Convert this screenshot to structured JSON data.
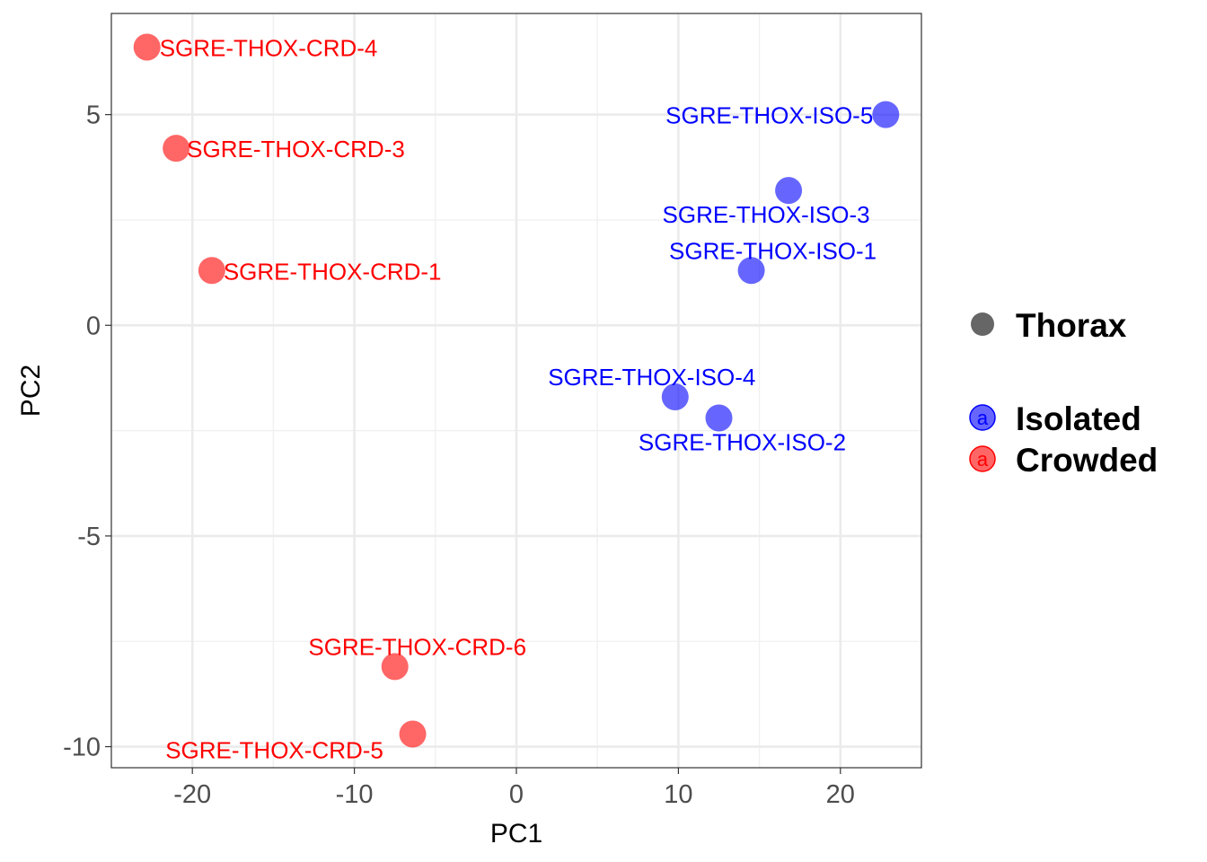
{
  "chart_data": {
    "type": "scatter",
    "title": "",
    "xlabel": "PC1",
    "ylabel": "PC2",
    "xlim": [
      -25,
      25
    ],
    "ylim": [
      -10.5,
      7.4
    ],
    "x_ticks": [
      -20,
      -10,
      0,
      10,
      20
    ],
    "x_tick_labels": [
      "-20",
      "-10",
      "0",
      "10",
      "20"
    ],
    "y_ticks": [
      -10,
      -5,
      0,
      5
    ],
    "y_tick_labels": [
      "-10",
      "-5",
      "0",
      "5"
    ],
    "grid": true,
    "legend_position": "right",
    "legend": {
      "shape_title": "Thorax",
      "shape_color": "#666666",
      "glyph": "a",
      "entries": [
        {
          "name": "Isolated",
          "color": "#0000ff"
        },
        {
          "name": "Crowded",
          "color": "#ff0000"
        }
      ]
    },
    "series": [
      {
        "name": "Isolated",
        "color": "#0000ff",
        "points": [
          {
            "label": "SGRE-THOX-ISO-5",
            "x": 22.8,
            "y": 5.0
          },
          {
            "label": "SGRE-THOX-ISO-3",
            "x": 16.8,
            "y": 3.2
          },
          {
            "label": "SGRE-THOX-ISO-1",
            "x": 14.5,
            "y": 1.3
          },
          {
            "label": "SGRE-THOX-ISO-4",
            "x": 9.8,
            "y": -1.7
          },
          {
            "label": "SGRE-THOX-ISO-2",
            "x": 12.5,
            "y": -2.2
          }
        ]
      },
      {
        "name": "Crowded",
        "color": "#ff0000",
        "points": [
          {
            "label": "SGRE-THOX-CRD-4",
            "x": -22.8,
            "y": 6.6
          },
          {
            "label": "SGRE-THOX-CRD-3",
            "x": -21.0,
            "y": 4.2
          },
          {
            "label": "SGRE-THOX-CRD-1",
            "x": -18.8,
            "y": 1.3
          },
          {
            "label": "SGRE-THOX-CRD-6",
            "x": -7.5,
            "y": -8.1
          },
          {
            "label": "SGRE-THOX-CRD-5",
            "x": -6.4,
            "y": -9.7
          }
        ]
      }
    ]
  }
}
